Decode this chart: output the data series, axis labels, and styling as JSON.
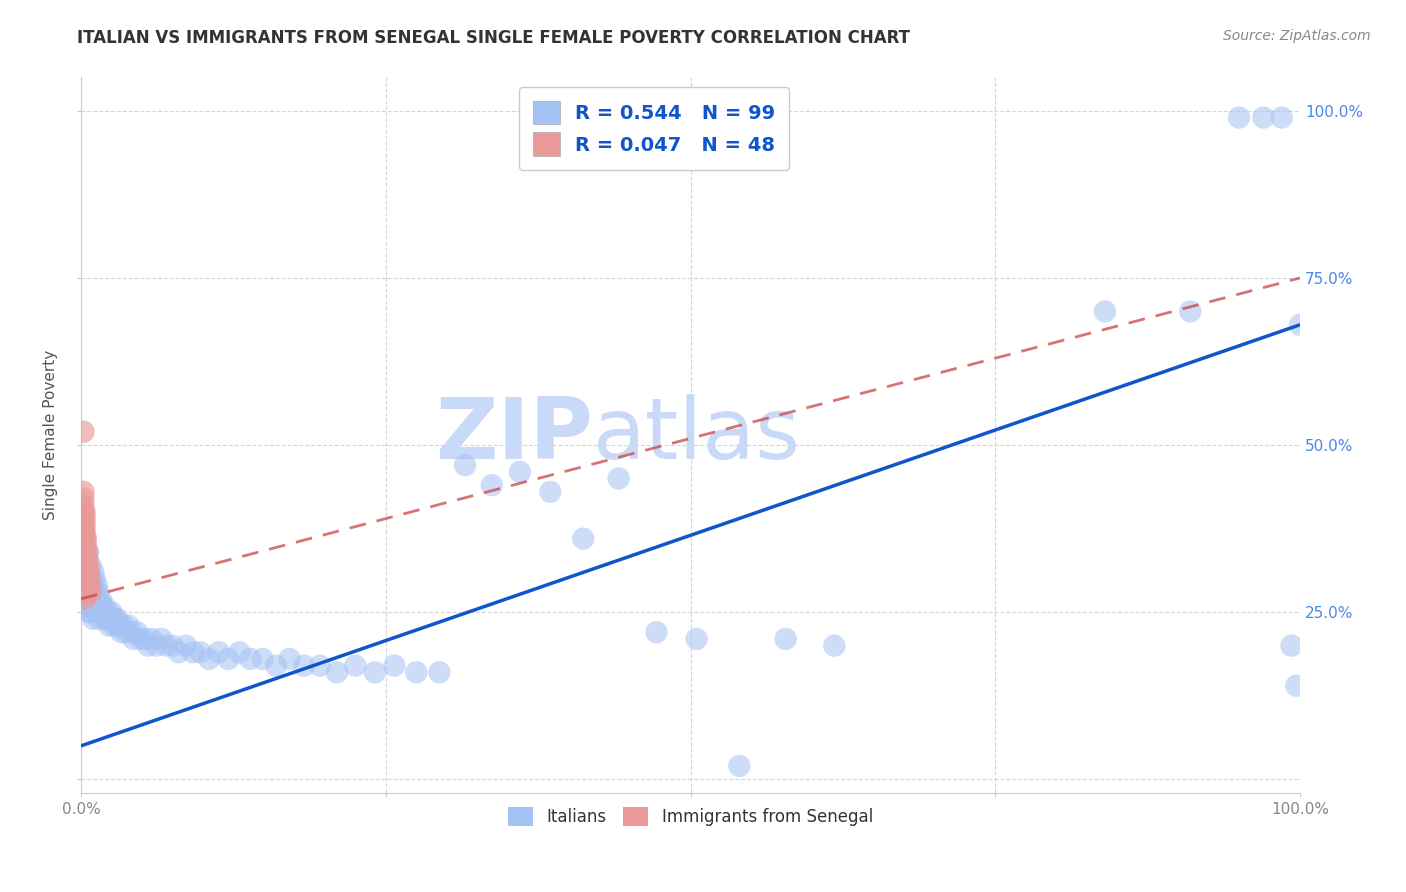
{
  "title": "ITALIAN VS IMMIGRANTS FROM SENEGAL SINGLE FEMALE POVERTY CORRELATION CHART",
  "source": "Source: ZipAtlas.com",
  "ylabel": "Single Female Poverty",
  "watermark_zip": "ZIP",
  "watermark_atlas": "atlas",
  "legend_italian_label": "Italians",
  "legend_senegal_label": "Immigrants from Senegal",
  "italian_R": "0.544",
  "italian_N": "99",
  "senegal_R": "0.047",
  "senegal_N": "48",
  "italian_color": "#a4c2f4",
  "senegal_color": "#ea9999",
  "italian_line_color": "#1155cc",
  "senegal_line_color": "#cc4444",
  "background_color": "#ffffff",
  "grid_color": "#cccccc",
  "title_color": "#333333",
  "tick_label_color": "#4a86e8",
  "tick_label_color_axis": "#888888",
  "watermark_color": "#c9daf8",
  "stat_label_color": "#1155cc",
  "xlim": [
    0.0,
    1.0
  ],
  "ylim": [
    -0.02,
    1.05
  ],
  "xtick_positions": [
    0.0,
    0.25,
    0.5,
    0.75,
    1.0
  ],
  "xticklabels": [
    "0.0%",
    "",
    "",
    "",
    "100.0%"
  ],
  "ytick_positions": [
    0.0,
    0.25,
    0.5,
    0.75,
    1.0
  ],
  "italian_trend_start_x": 0.0,
  "italian_trend_start_y": 0.05,
  "italian_trend_end_x": 1.0,
  "italian_trend_end_y": 0.68,
  "senegal_trend_start_x": 0.0,
  "senegal_trend_start_y": 0.27,
  "senegal_trend_end_x": 1.0,
  "senegal_trend_end_y": 0.75,
  "italian_x": [
    0.003,
    0.004,
    0.005,
    0.005,
    0.006,
    0.006,
    0.007,
    0.007,
    0.007,
    0.008,
    0.008,
    0.008,
    0.009,
    0.009,
    0.01,
    0.01,
    0.01,
    0.011,
    0.011,
    0.012,
    0.012,
    0.013,
    0.013,
    0.014,
    0.014,
    0.015,
    0.015,
    0.016,
    0.016,
    0.017,
    0.018,
    0.019,
    0.02,
    0.02,
    0.021,
    0.022,
    0.023,
    0.024,
    0.025,
    0.026,
    0.027,
    0.028,
    0.029,
    0.03,
    0.032,
    0.033,
    0.035,
    0.037,
    0.039,
    0.041,
    0.043,
    0.046,
    0.049,
    0.052,
    0.055,
    0.058,
    0.062,
    0.066,
    0.07,
    0.075,
    0.08,
    0.086,
    0.092,
    0.098,
    0.105,
    0.113,
    0.121,
    0.13,
    0.139,
    0.149,
    0.16,
    0.171,
    0.183,
    0.196,
    0.21,
    0.225,
    0.241,
    0.257,
    0.275,
    0.294,
    0.315,
    0.337,
    0.36,
    0.385,
    0.412,
    0.441,
    0.472,
    0.505,
    0.54,
    0.578,
    0.618,
    0.84,
    0.91,
    0.95,
    0.97,
    0.985,
    0.993,
    0.997,
    1.0
  ],
  "italian_y": [
    0.3,
    0.26,
    0.32,
    0.27,
    0.34,
    0.28,
    0.31,
    0.25,
    0.29,
    0.32,
    0.27,
    0.25,
    0.29,
    0.26,
    0.31,
    0.28,
    0.24,
    0.3,
    0.26,
    0.28,
    0.25,
    0.27,
    0.29,
    0.25,
    0.28,
    0.26,
    0.24,
    0.27,
    0.25,
    0.26,
    0.25,
    0.26,
    0.24,
    0.25,
    0.24,
    0.25,
    0.23,
    0.24,
    0.25,
    0.24,
    0.23,
    0.24,
    0.23,
    0.24,
    0.23,
    0.22,
    0.23,
    0.22,
    0.23,
    0.22,
    0.21,
    0.22,
    0.21,
    0.21,
    0.2,
    0.21,
    0.2,
    0.21,
    0.2,
    0.2,
    0.19,
    0.2,
    0.19,
    0.19,
    0.18,
    0.19,
    0.18,
    0.19,
    0.18,
    0.18,
    0.17,
    0.18,
    0.17,
    0.17,
    0.16,
    0.17,
    0.16,
    0.17,
    0.16,
    0.16,
    0.47,
    0.44,
    0.46,
    0.43,
    0.36,
    0.45,
    0.22,
    0.21,
    0.02,
    0.21,
    0.2,
    0.7,
    0.7,
    0.99,
    0.99,
    0.99,
    0.2,
    0.14,
    0.68
  ],
  "senegal_x": [
    0.002,
    0.002,
    0.002,
    0.002,
    0.002,
    0.002,
    0.002,
    0.002,
    0.002,
    0.002,
    0.002,
    0.002,
    0.002,
    0.002,
    0.003,
    0.003,
    0.003,
    0.003,
    0.003,
    0.003,
    0.003,
    0.003,
    0.003,
    0.003,
    0.003,
    0.003,
    0.003,
    0.003,
    0.004,
    0.004,
    0.004,
    0.004,
    0.004,
    0.004,
    0.004,
    0.004,
    0.005,
    0.005,
    0.005,
    0.005,
    0.005,
    0.005,
    0.006,
    0.006,
    0.007,
    0.007,
    0.008,
    0.002
  ],
  "senegal_y": [
    0.35,
    0.37,
    0.38,
    0.39,
    0.4,
    0.41,
    0.42,
    0.43,
    0.36,
    0.35,
    0.34,
    0.33,
    0.32,
    0.31,
    0.36,
    0.37,
    0.38,
    0.39,
    0.4,
    0.35,
    0.34,
    0.33,
    0.32,
    0.31,
    0.3,
    0.29,
    0.28,
    0.27,
    0.36,
    0.35,
    0.34,
    0.33,
    0.32,
    0.31,
    0.3,
    0.29,
    0.34,
    0.33,
    0.32,
    0.31,
    0.3,
    0.29,
    0.32,
    0.31,
    0.3,
    0.29,
    0.28,
    0.52
  ]
}
